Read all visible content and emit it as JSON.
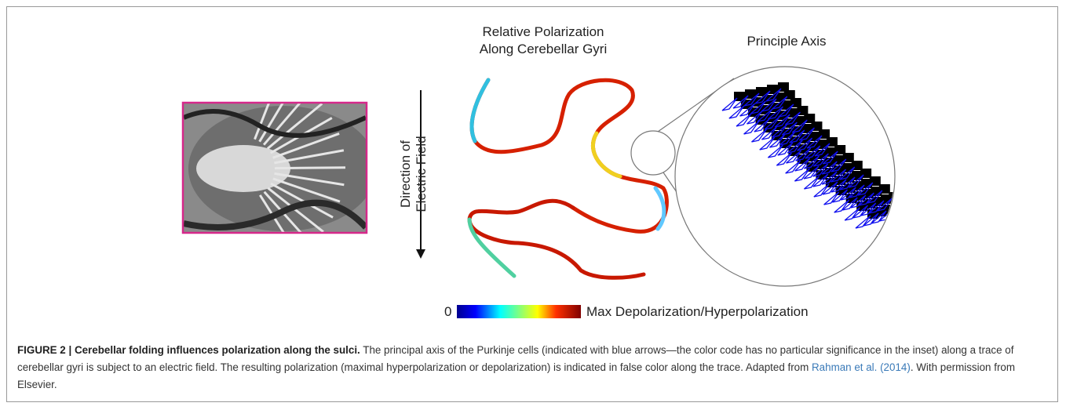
{
  "figure": {
    "panel_title": [
      "Relative Polarization",
      "Along Cerebellar Gyri"
    ],
    "inset_title": "Principle Axis",
    "axis_label": [
      "Direction of",
      "Electric Field"
    ],
    "colorbar": {
      "min_label": "0",
      "max_label": "Max Depolarization/Hyperpolarization"
    }
  },
  "caption": {
    "label": "FIGURE 2 | Cerebellar folding influences polarization along the sulci.",
    "text_before": " The principal axis of the Purkinje cells (indicated with blue arrows—the color code has no particular significance in the inset) along a trace of cerebellar gyri is subject to an electric field. The resulting polarization (maximal hyperpolarization or depolarization) is indicated in false color along the trace. Adapted from ",
    "link": "Rahman et al. (2014)",
    "text_after": ". With permission from Elsevier."
  }
}
